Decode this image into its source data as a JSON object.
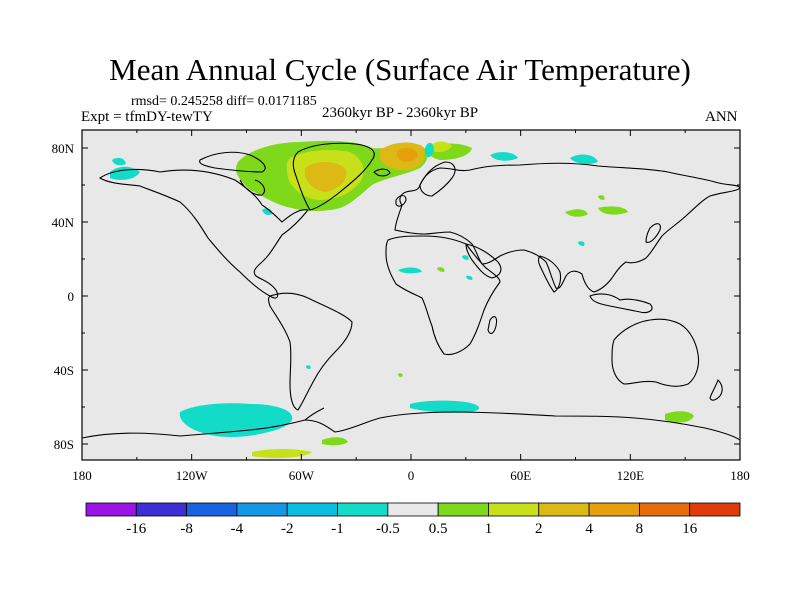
{
  "header": {
    "title": "Mean Annual Cycle (Surface Air Temperature)",
    "stats": "rmsd= 0.245258 diff= 0.0171185",
    "experiment": "Expt = tfmDY-tewTY",
    "period": "2360kyr BP - 2360kyr BP",
    "season": "ANN"
  },
  "axes": {
    "lon_ticks": [
      "180",
      "120W",
      "60W",
      "0",
      "60E",
      "120E",
      "180"
    ],
    "lat_ticks": [
      "80N",
      "40N",
      "0",
      "40S",
      "80S"
    ]
  },
  "colorbar": {
    "labels": [
      "-16",
      "-8",
      "-4",
      "-2",
      "-1",
      "-0.5",
      "0.5",
      "1",
      "2",
      "4",
      "8",
      "16"
    ],
    "colors": [
      "#9a14e6",
      "#3c2fd6",
      "#1a63e0",
      "#1497e6",
      "#0cbfe0",
      "#12dcc8",
      "#e8e8e8",
      "#7ed91a",
      "#c8e01a",
      "#dcb914",
      "#e6a00c",
      "#e66e0a",
      "#e03c0a"
    ]
  },
  "map": {
    "background": "#e8e8e8",
    "anomalies": [
      {
        "region": "Greenland-Arctic warm",
        "color": "#7ed91a"
      },
      {
        "region": "Greenland interior",
        "color": "#c8e01a"
      },
      {
        "region": "Greenland core",
        "color": "#dcb914"
      },
      {
        "region": "Svalbard warm",
        "color": "#e6a00c"
      },
      {
        "region": "Antarctic cool",
        "color": "#12dcc8"
      }
    ]
  }
}
